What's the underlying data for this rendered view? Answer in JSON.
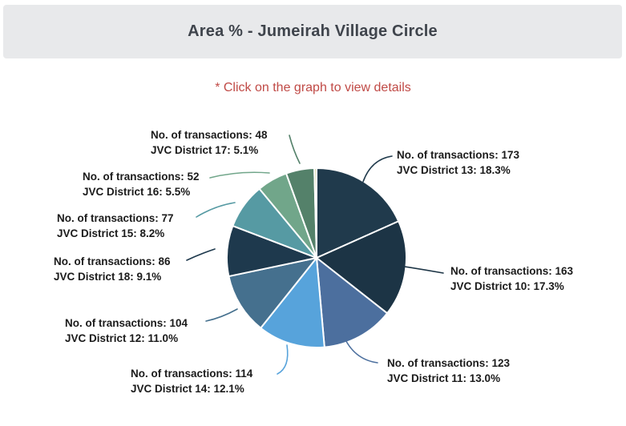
{
  "header": {
    "title": "Area % - Jumeirah Village Circle"
  },
  "subtitle": "* Click on the graph to view details",
  "chart_data": {
    "type": "pie",
    "title": "Area % - Jumeirah Village Circle",
    "hint": "* Click on the graph to view details",
    "label_prefix": "No. of transactions: ",
    "legend": "none",
    "start_angle_deg": -90,
    "direction": "clockwise",
    "slices": [
      {
        "district": "JVC District 13",
        "transactions": 173,
        "percent": "18.3",
        "color": "#203a4c",
        "labeled": true
      },
      {
        "district": "JVC District 10",
        "transactions": 163,
        "percent": "17.3",
        "color": "#1c3445",
        "labeled": true
      },
      {
        "district": "JVC District 11",
        "transactions": 123,
        "percent": "13.0",
        "color": "#4c6f9e",
        "labeled": true
      },
      {
        "district": "JVC District 14",
        "transactions": 114,
        "percent": "12.1",
        "color": "#57a3db",
        "labeled": true
      },
      {
        "district": "JVC District 12",
        "transactions": 104,
        "percent": "11.0",
        "color": "#45708e",
        "labeled": true
      },
      {
        "district": "JVC District 18",
        "transactions": 86,
        "percent": "9.1",
        "color": "#1e394d",
        "labeled": true
      },
      {
        "district": "JVC District 15",
        "transactions": 77,
        "percent": "8.2",
        "color": "#569aa3",
        "labeled": true
      },
      {
        "district": "JVC District 16",
        "transactions": 52,
        "percent": "5.5",
        "color": "#71a68a",
        "labeled": true
      },
      {
        "district": "JVC District 17",
        "transactions": 48,
        "percent": "5.1",
        "color": "#54816a",
        "labeled": true
      },
      {
        "district": "",
        "transactions": null,
        "percent": "0.4",
        "color": "#d8d89e",
        "labeled": false
      }
    ]
  }
}
